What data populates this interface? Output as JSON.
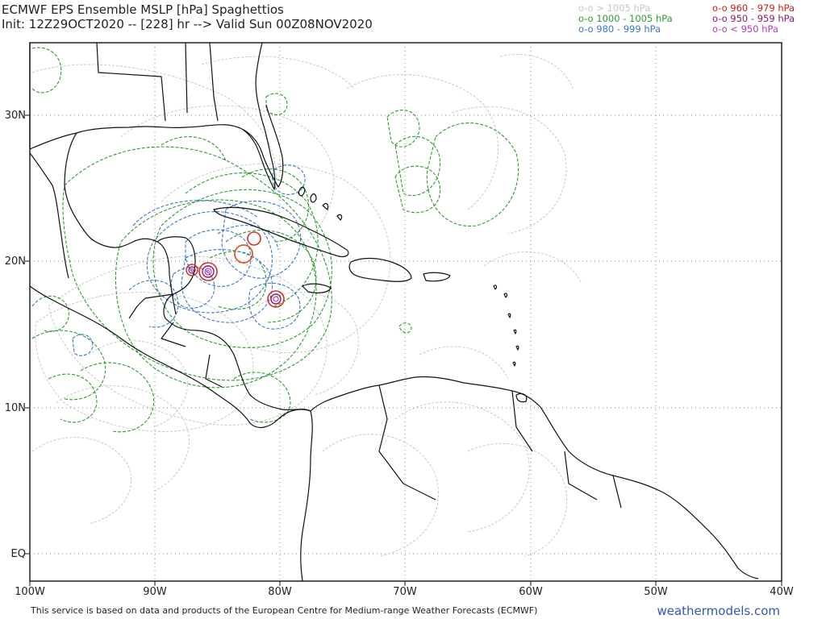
{
  "header": {
    "title_line1": "ECMWF EPS Ensemble MSLP [hPa] Spaghettios",
    "title_line2": "Init: 12Z29OCT2020 -- [228] hr --> Valid Sun 00Z08NOV2020"
  },
  "legend": [
    {
      "text": "o-o > 1005 hPa",
      "color": "#c8c8c8"
    },
    {
      "text": "o-o 1000 - 1005 hPa",
      "color": "#2e9b2e"
    },
    {
      "text": "o-o 980 - 999 hPa",
      "color": "#3a78c8"
    },
    {
      "text": "o-o 960 - 979 hPa",
      "color": "#c8201a"
    },
    {
      "text": "o-o 950 - 959 hPa",
      "color": "#8b1a6b"
    },
    {
      "text": "o-o < 950 hPa",
      "color": "#b43ab4"
    }
  ],
  "axes": {
    "lat_labels": [
      "30N",
      "20N",
      "10N",
      "EQ"
    ],
    "lon_labels": [
      "100W",
      "90W",
      "80W",
      "70W",
      "60W",
      "50W",
      "40W"
    ]
  },
  "footer": {
    "disclaimer": "This service is based on data and products of the European Centre for Medium-range Weather Forecasts (ECMWF)",
    "site": "weathermodels.com"
  },
  "colors": {
    "coast": "#111111",
    "grid": "#888888",
    "gt1005": "#c8c8c8",
    "c1000_1005": "#2e9b2e",
    "c980_999": "#3a78c8",
    "c960_979": "#d2321e",
    "c950_959": "#8b1a6b",
    "lt950": "#b43ab4"
  },
  "lows": [
    {
      "name": "low-nw-caribbean-1",
      "lon": -87.1,
      "lat": 19.3,
      "class": "960-979"
    },
    {
      "name": "low-nw-caribbean-2",
      "lon": -85.9,
      "lat": 19.3,
      "class": "<950"
    },
    {
      "name": "low-cuba-1",
      "lon": -82.1,
      "lat": 21.6,
      "class": "960-979"
    },
    {
      "name": "low-cuba-2",
      "lon": -82.9,
      "lat": 20.5,
      "class": "960-979"
    },
    {
      "name": "low-jamaica-south",
      "lon": -80.3,
      "lat": 17.4,
      "class": "<950"
    }
  ]
}
